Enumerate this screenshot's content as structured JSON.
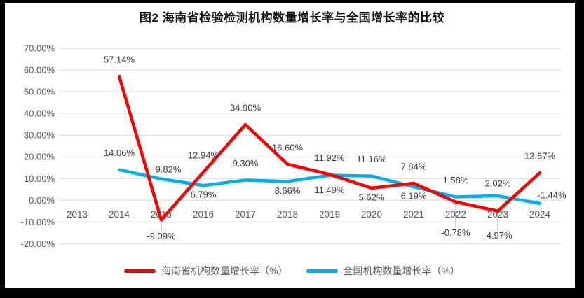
{
  "title": "图2 海南省检验检测机构数量增长率与全国增长率的比较",
  "colors": {
    "hainan_line": "#FF0000",
    "national_line": "#00B0F0",
    "gridline": "#D9D9D9",
    "axis_text": "#595959",
    "data_label_text": "#3A3A3A",
    "leader_line": "#A6A6A6",
    "frame": "#000000",
    "background": "#FFFFFF"
  },
  "chart_data": {
    "type": "line",
    "title": "图2 海南省检验检测机构数量增长率与全国增长率的比较",
    "categories": [
      "2013",
      "2014",
      "2015",
      "2016",
      "2017",
      "2018",
      "2019",
      "2020",
      "2021",
      "2022",
      "2023",
      "2024"
    ],
    "y_ticks": [
      "70.00%",
      "60.00%",
      "50.00%",
      "40.00%",
      "30.00%",
      "20.00%",
      "10.00%",
      "0.00%",
      "-10.00%",
      "-20.00%"
    ],
    "ylim": [
      -20,
      70
    ],
    "grid": true,
    "legend_position": "bottom",
    "series": [
      {
        "name": "海南省机构数量增长率（%）",
        "color": "#FF0000",
        "points": [
          {
            "x": "2014",
            "value": 57.14,
            "label": "57.14%",
            "pos": "above"
          },
          {
            "x": "2015",
            "value": -9.09,
            "label": "-9.09%",
            "pos": "below",
            "dy": 23,
            "leader": true
          },
          {
            "x": "2016",
            "value": 12.94,
            "label": "12.94%",
            "pos": "above"
          },
          {
            "x": "2017",
            "value": 34.9,
            "label": "34.90%",
            "pos": "above"
          },
          {
            "x": "2018",
            "value": 16.6,
            "label": "16.60%",
            "pos": "above"
          },
          {
            "x": "2019",
            "value": 11.92,
            "label": "11.92%",
            "pos": "above"
          },
          {
            "x": "2020",
            "value": 5.62,
            "label": "5.62%",
            "pos": "below"
          },
          {
            "x": "2021",
            "value": 7.84,
            "label": "7.84%",
            "pos": "above"
          },
          {
            "x": "2022",
            "value": -0.78,
            "label": "-0.78%",
            "pos": "below",
            "dy": 44,
            "leader": true
          },
          {
            "x": "2023",
            "value": -4.97,
            "label": "-4.97%",
            "pos": "below",
            "dy": 35,
            "leader": true
          },
          {
            "x": "2024",
            "value": 12.67,
            "label": "12.67%",
            "pos": "above"
          }
        ]
      },
      {
        "name": "全国机构数量增长率（%）",
        "color": "#00B0F0",
        "points": [
          {
            "x": "2014",
            "value": 14.06,
            "label": "14.06%",
            "pos": "above"
          },
          {
            "x": "2015",
            "value": 9.82,
            "label": "9.82%",
            "pos": "above",
            "dx": 10,
            "dy": -14
          },
          {
            "x": "2016",
            "value": 6.79,
            "label": "6.79%",
            "pos": "below"
          },
          {
            "x": "2017",
            "value": 9.3,
            "label": "9.30%",
            "pos": "above"
          },
          {
            "x": "2018",
            "value": 8.66,
            "label": "8.66%",
            "pos": "below"
          },
          {
            "x": "2019",
            "value": 11.49,
            "label": "11.49%",
            "pos": "below",
            "dy": 21
          },
          {
            "x": "2020",
            "value": 11.16,
            "label": "11.16%",
            "pos": "above"
          },
          {
            "x": "2021",
            "value": 6.19,
            "label": "6.19%",
            "pos": "below"
          },
          {
            "x": "2022",
            "value": 1.58,
            "label": "1.58%",
            "pos": "above"
          },
          {
            "x": "2023",
            "value": 2.02,
            "label": "2.02%",
            "pos": "above",
            "dy": -18
          },
          {
            "x": "2024",
            "value": -1.44,
            "label": "-1.44%",
            "pos": "above",
            "dx": 17,
            "dy": -12
          }
        ]
      }
    ]
  }
}
